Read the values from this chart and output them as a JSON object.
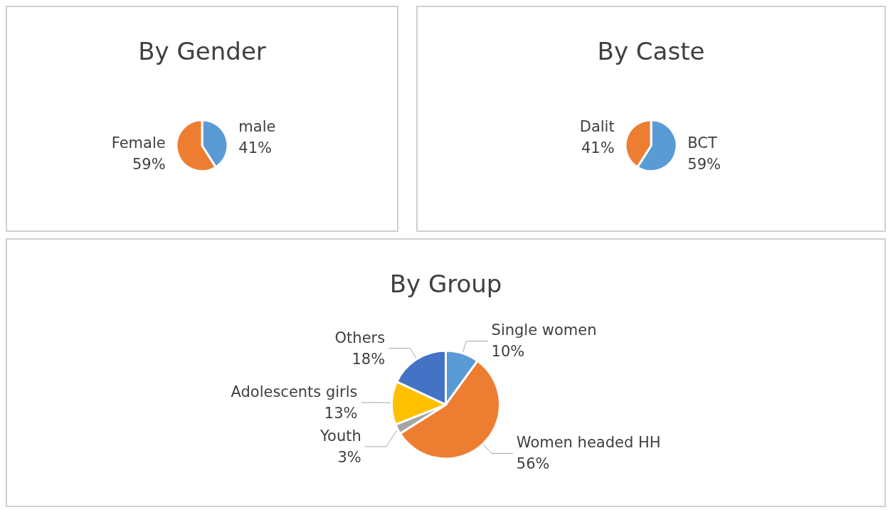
{
  "chart_data": [
    {
      "type": "pie",
      "title": "By Gender",
      "categories": [
        "male",
        "Female"
      ],
      "values": [
        41,
        59
      ],
      "value_labels": [
        "41%",
        "59%"
      ],
      "colors": [
        "#5b9bd5",
        "#ed7d31"
      ]
    },
    {
      "type": "pie",
      "title": "By Caste",
      "categories": [
        "BCT",
        "Dalit"
      ],
      "values": [
        59,
        41
      ],
      "value_labels": [
        "59%",
        "41%"
      ],
      "colors": [
        "#5b9bd5",
        "#ed7d31"
      ]
    },
    {
      "type": "pie",
      "title": "By Group",
      "categories": [
        "Single women",
        "Women headed HH",
        "Youth",
        "Adolescents girls",
        "Others"
      ],
      "values": [
        10,
        56,
        3,
        13,
        18
      ],
      "value_labels": [
        "10%",
        "56%",
        "3%",
        "13%",
        "18%"
      ],
      "colors": [
        "#5b9bd5",
        "#ed7d31",
        "#a5a5a5",
        "#ffc000",
        "#4472c4"
      ]
    }
  ]
}
